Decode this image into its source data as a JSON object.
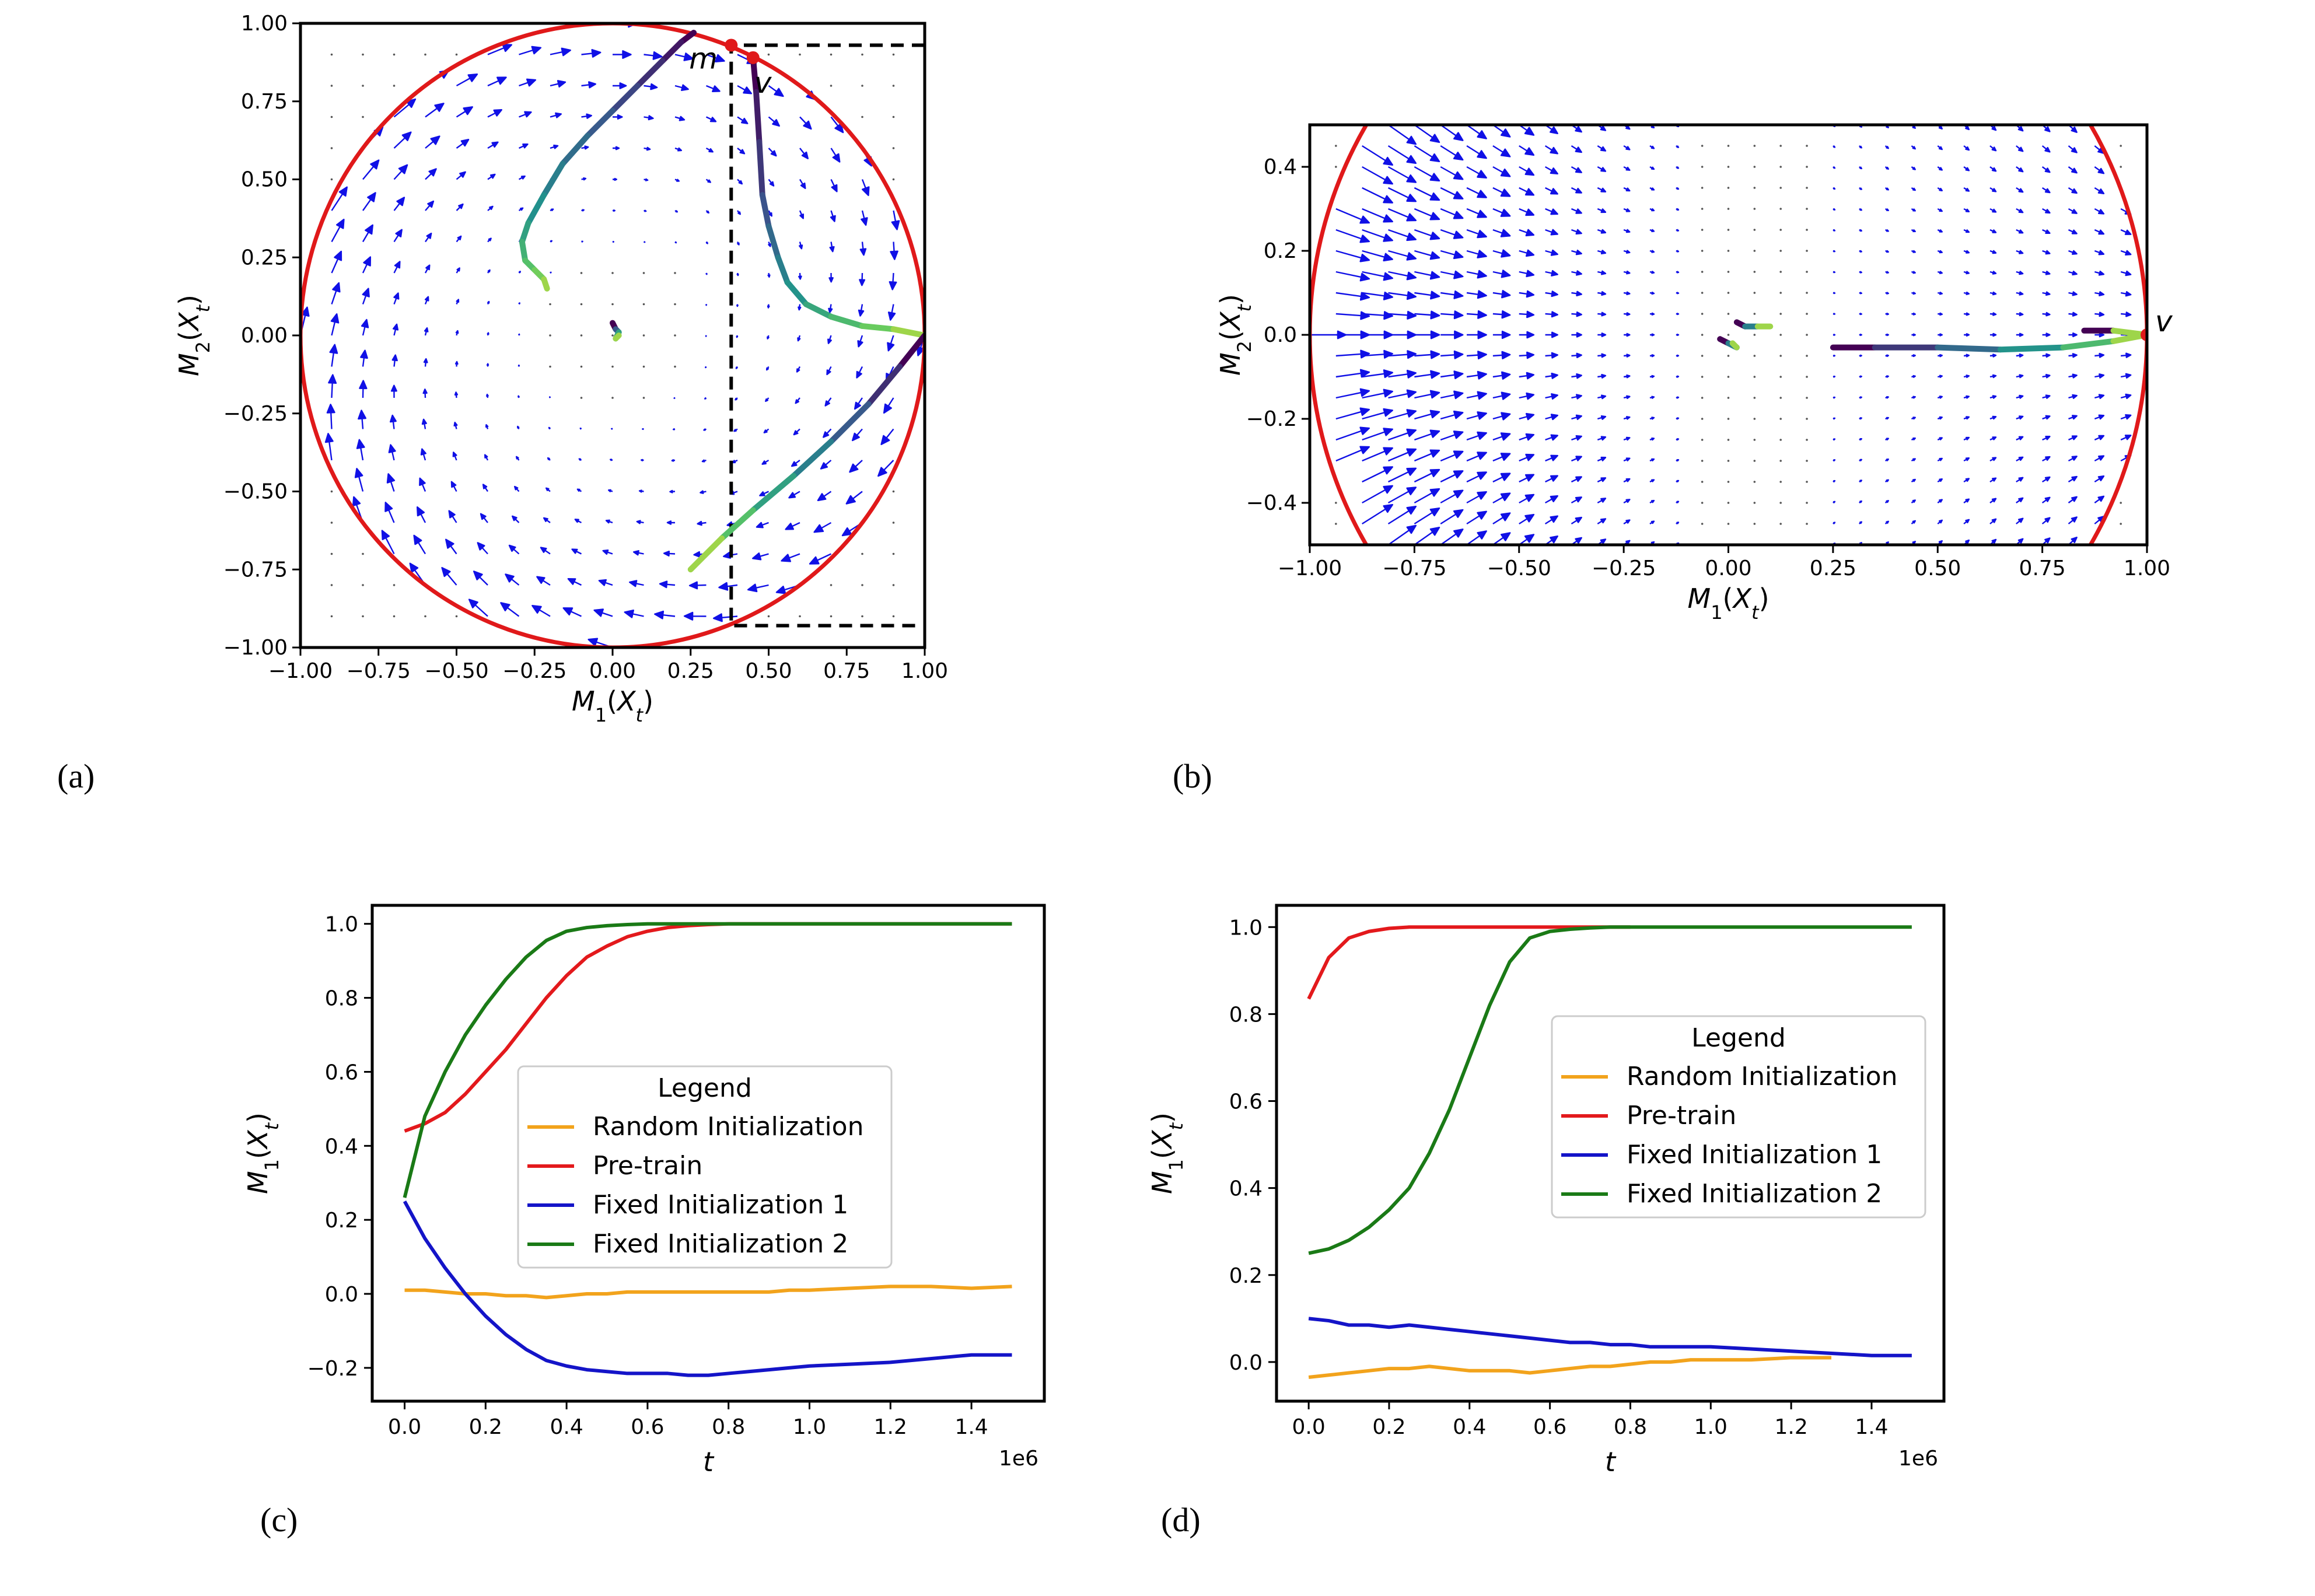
{
  "colors": {
    "circle": "#e0191a",
    "arrows": "#1010e6",
    "random": "#f2a31c",
    "pretrain": "#e3191c",
    "fixed1": "#1414c8",
    "fixed2": "#1a7a16"
  },
  "panel_labels": [
    "(a)",
    "(b)",
    "(c)",
    "(d)"
  ],
  "chart_data": [
    {
      "id": "a",
      "type": "scatter",
      "title": "",
      "xlabel": "M_1(X_t)",
      "ylabel": "M_2(X_t)",
      "xlim": [
        -1.0,
        1.0
      ],
      "ylim": [
        -1.0,
        1.0
      ],
      "xticks": [
        "−1.00",
        "−0.75",
        "−0.50",
        "−0.25",
        "0.00",
        "0.25",
        "0.50",
        "0.75",
        "1.00"
      ],
      "yticks": [
        "−1.00",
        "−0.75",
        "−0.50",
        "−0.25",
        "0.00",
        "0.25",
        "0.50",
        "0.75",
        "1.00"
      ],
      "xtick_values": [
        -1.0,
        -0.75,
        -0.5,
        -0.25,
        0.0,
        0.25,
        0.5,
        0.75,
        1.0
      ],
      "ytick_values": [
        -1.0,
        -0.75,
        -0.5,
        -0.25,
        0.0,
        0.25,
        0.5,
        0.75,
        1.0
      ],
      "unit_circle": true,
      "vector_field": "rotational flow on unit disk",
      "points": [
        {
          "label": "m",
          "x": 0.38,
          "y": 0.93
        },
        {
          "label": "v",
          "x": 0.45,
          "y": 0.89
        }
      ],
      "dashed_box": {
        "x": [
          0.38,
          1.0
        ],
        "y": [
          -0.93,
          0.93
        ]
      },
      "trajectories": [
        {
          "name": "traj-1",
          "x": [
            0.26,
            0.22,
            0.16,
            0.08,
            0.0,
            -0.08,
            -0.16,
            -0.22,
            -0.27,
            -0.29,
            -0.28,
            -0.25,
            -0.22,
            -0.21
          ],
          "y": [
            0.97,
            0.94,
            0.88,
            0.8,
            0.72,
            0.64,
            0.55,
            0.45,
            0.36,
            0.3,
            0.24,
            0.21,
            0.18,
            0.15
          ]
        },
        {
          "name": "traj-2",
          "x": [
            0.0,
            0.01,
            0.02,
            0.01,
            0.02
          ],
          "y": [
            0.04,
            0.02,
            0.01,
            -0.01,
            0.0
          ]
        },
        {
          "name": "traj-3",
          "x": [
            0.45,
            0.46,
            0.47,
            0.48,
            0.5,
            0.53,
            0.56,
            0.62,
            0.7,
            0.8,
            0.9,
            1.0
          ],
          "y": [
            0.89,
            0.78,
            0.62,
            0.45,
            0.35,
            0.25,
            0.17,
            0.1,
            0.06,
            0.03,
            0.02,
            0.0
          ]
        },
        {
          "name": "traj-4",
          "x": [
            1.0,
            0.92,
            0.82,
            0.7,
            0.58,
            0.45,
            0.35,
            0.25
          ],
          "y": [
            0.0,
            -0.1,
            -0.22,
            -0.34,
            -0.45,
            -0.56,
            -0.65,
            -0.75
          ]
        }
      ]
    },
    {
      "id": "b",
      "type": "scatter",
      "title": "",
      "xlabel": "M_1(X_t)",
      "ylabel": "M_2(X_t)",
      "xlim": [
        -1.0,
        1.0
      ],
      "ylim": [
        -0.5,
        0.5
      ],
      "xticks": [
        "−1.00",
        "−0.75",
        "−0.50",
        "−0.25",
        "0.00",
        "0.25",
        "0.50",
        "0.75",
        "1.00"
      ],
      "yticks": [
        "−0.4",
        "−0.2",
        "0.0",
        "0.2",
        "0.4"
      ],
      "xtick_values": [
        -1.0,
        -0.75,
        -0.5,
        -0.25,
        0.0,
        0.25,
        0.5,
        0.75,
        1.0
      ],
      "ytick_values": [
        -0.4,
        -0.2,
        0.0,
        0.2,
        0.4
      ],
      "unit_circle": true,
      "vector_field": "flow toward x = 1",
      "points": [
        {
          "label": "v",
          "x": 1.0,
          "y": 0.0
        }
      ],
      "trajectories": [
        {
          "name": "traj-1",
          "x": [
            0.25,
            0.35,
            0.5,
            0.65,
            0.8,
            0.92,
            1.0
          ],
          "y": [
            -0.03,
            -0.03,
            -0.03,
            -0.035,
            -0.03,
            -0.015,
            0.0
          ]
        },
        {
          "name": "traj-2",
          "x": [
            0.85,
            0.92,
            1.0
          ],
          "y": [
            0.01,
            0.01,
            0.0
          ]
        },
        {
          "name": "traj-3",
          "x": [
            -0.02,
            0.0,
            0.02,
            0.01
          ],
          "y": [
            -0.01,
            -0.02,
            -0.03,
            -0.02
          ]
        },
        {
          "name": "traj-4",
          "x": [
            0.02,
            0.04,
            0.07,
            0.1
          ],
          "y": [
            0.03,
            0.02,
            0.02,
            0.02
          ]
        }
      ]
    },
    {
      "id": "c",
      "type": "line",
      "title": "",
      "xlabel": "t",
      "ylabel": "M_1(X_t)",
      "x_scale_label": "1e6",
      "xlim": [
        -0.08,
        1.58
      ],
      "ylim": [
        -0.29,
        1.05
      ],
      "xticks": [
        "0.0",
        "0.2",
        "0.4",
        "0.6",
        "0.8",
        "1.0",
        "1.2",
        "1.4"
      ],
      "yticks": [
        "−0.2",
        "0.0",
        "0.2",
        "0.4",
        "0.6",
        "0.8",
        "1.0"
      ],
      "xtick_values": [
        0.0,
        0.2,
        0.4,
        0.6,
        0.8,
        1.0,
        1.2,
        1.4
      ],
      "ytick_values": [
        -0.2,
        0.0,
        0.2,
        0.4,
        0.6,
        0.8,
        1.0
      ],
      "legend": {
        "title": "Legend",
        "position": "center-right"
      },
      "x": [
        0.0,
        0.05,
        0.1,
        0.15,
        0.2,
        0.25,
        0.3,
        0.35,
        0.4,
        0.45,
        0.5,
        0.55,
        0.6,
        0.65,
        0.7,
        0.75,
        0.8,
        0.85,
        0.9,
        0.95,
        1.0,
        1.1,
        1.2,
        1.3,
        1.4,
        1.5
      ],
      "series": [
        {
          "name": "Random Initialization",
          "color_key": "random",
          "values": [
            0.01,
            0.01,
            0.005,
            0.0,
            0.0,
            -0.005,
            -0.005,
            -0.01,
            -0.005,
            0.0,
            0.0,
            0.005,
            0.005,
            0.005,
            0.005,
            0.005,
            0.005,
            0.005,
            0.005,
            0.01,
            0.01,
            0.015,
            0.02,
            0.02,
            0.015,
            0.02
          ]
        },
        {
          "name": "Pre-train",
          "color_key": "pretrain",
          "values": [
            0.44,
            0.46,
            0.49,
            0.54,
            0.6,
            0.66,
            0.73,
            0.8,
            0.86,
            0.91,
            0.94,
            0.965,
            0.98,
            0.99,
            0.995,
            0.998,
            1.0,
            1.0,
            1.0,
            1.0,
            1.0,
            1.0,
            1.0,
            1.0,
            1.0,
            1.0
          ]
        },
        {
          "name": "Fixed Initialization 1",
          "color_key": "fixed1",
          "values": [
            0.25,
            0.15,
            0.07,
            0.0,
            -0.06,
            -0.11,
            -0.15,
            -0.18,
            -0.195,
            -0.205,
            -0.21,
            -0.215,
            -0.215,
            -0.215,
            -0.22,
            -0.22,
            -0.215,
            -0.21,
            -0.205,
            -0.2,
            -0.195,
            -0.19,
            -0.185,
            -0.175,
            -0.165,
            -0.165
          ]
        },
        {
          "name": "Fixed Initialization 2",
          "color_key": "fixed2",
          "values": [
            0.26,
            0.48,
            0.6,
            0.7,
            0.78,
            0.85,
            0.91,
            0.955,
            0.98,
            0.99,
            0.995,
            0.998,
            1.0,
            1.0,
            1.0,
            1.0,
            1.0,
            1.0,
            1.0,
            1.0,
            1.0,
            1.0,
            1.0,
            1.0,
            1.0,
            1.0
          ]
        }
      ]
    },
    {
      "id": "d",
      "type": "line",
      "title": "",
      "xlabel": "t",
      "ylabel": "M_1(X_t)",
      "x_scale_label": "1e6",
      "xlim": [
        -0.08,
        1.58
      ],
      "ylim": [
        -0.09,
        1.05
      ],
      "xticks": [
        "0.0",
        "0.2",
        "0.4",
        "0.6",
        "0.8",
        "1.0",
        "1.2",
        "1.4"
      ],
      "yticks": [
        "0.0",
        "0.2",
        "0.4",
        "0.6",
        "0.8",
        "1.0"
      ],
      "xtick_values": [
        0.0,
        0.2,
        0.4,
        0.6,
        0.8,
        1.0,
        1.2,
        1.4
      ],
      "ytick_values": [
        0.0,
        0.2,
        0.4,
        0.6,
        0.8,
        1.0
      ],
      "legend": {
        "title": "Legend",
        "position": "center-right"
      },
      "x": [
        0.0,
        0.05,
        0.1,
        0.15,
        0.2,
        0.25,
        0.3,
        0.35,
        0.4,
        0.45,
        0.5,
        0.55,
        0.6,
        0.65,
        0.7,
        0.75,
        0.8,
        0.85,
        0.9,
        0.95,
        1.0,
        1.1,
        1.2,
        1.3,
        1.4,
        1.5
      ],
      "series": [
        {
          "name": "Random Initialization",
          "color_key": "random",
          "values": [
            -0.035,
            -0.03,
            -0.025,
            -0.02,
            -0.015,
            -0.015,
            -0.01,
            -0.015,
            -0.02,
            -0.02,
            -0.02,
            -0.025,
            -0.02,
            -0.015,
            -0.01,
            -0.01,
            -0.005,
            0.0,
            0.0,
            0.005,
            0.005,
            0.005,
            0.01,
            0.01,
            null,
            null
          ]
        },
        {
          "name": "Pre-train",
          "color_key": "pretrain",
          "values": [
            0.835,
            0.93,
            0.975,
            0.99,
            0.997,
            1.0,
            1.0,
            1.0,
            1.0,
            1.0,
            1.0,
            1.0,
            1.0,
            1.0,
            1.0,
            1.0,
            1.0,
            null,
            null,
            null,
            null,
            null,
            null,
            null,
            null,
            null
          ]
        },
        {
          "name": "Fixed Initialization 1",
          "color_key": "fixed1",
          "values": [
            0.1,
            0.095,
            0.085,
            0.085,
            0.08,
            0.085,
            0.08,
            0.075,
            0.07,
            0.065,
            0.06,
            0.055,
            0.05,
            0.045,
            0.045,
            0.04,
            0.04,
            0.035,
            0.035,
            0.035,
            0.035,
            0.03,
            0.025,
            0.02,
            0.015,
            0.015
          ]
        },
        {
          "name": "Fixed Initialization 2",
          "color_key": "fixed2",
          "values": [
            0.25,
            0.26,
            0.28,
            0.31,
            0.35,
            0.4,
            0.48,
            0.58,
            0.7,
            0.82,
            0.92,
            0.975,
            0.99,
            0.995,
            0.998,
            1.0,
            1.0,
            1.0,
            1.0,
            1.0,
            1.0,
            1.0,
            1.0,
            1.0,
            1.0,
            1.0
          ]
        }
      ]
    }
  ]
}
